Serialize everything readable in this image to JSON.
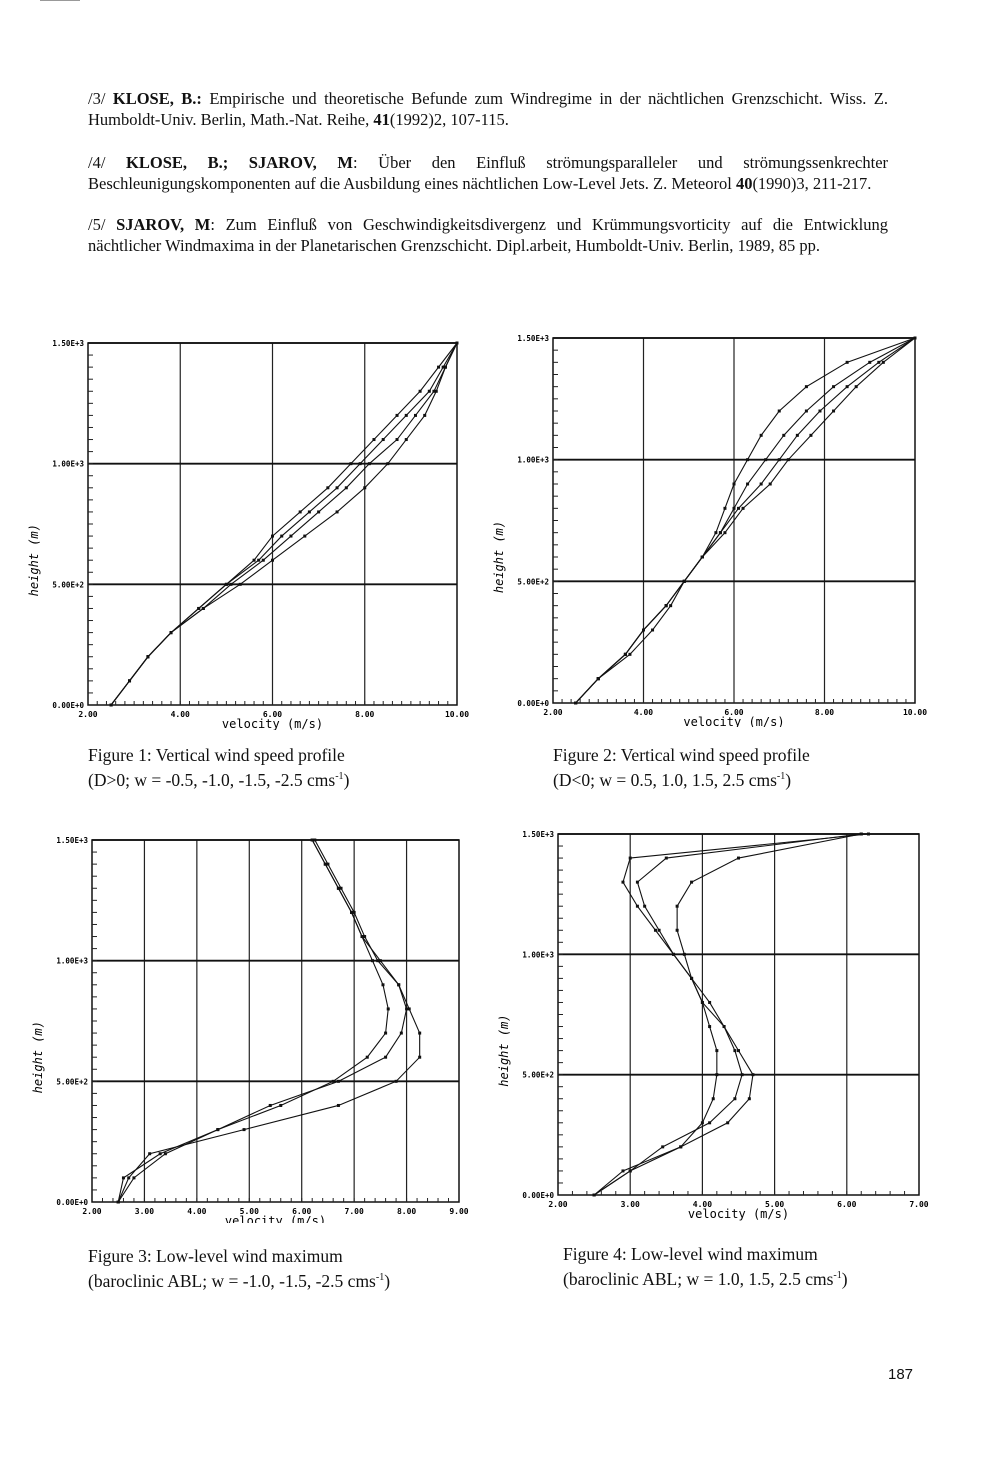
{
  "references": [
    {
      "label": "/3/",
      "author": "KLOSE, B.:",
      "text": "Empirische und theoretische Befunde zum Windregime in der nächtlichen Grenzschicht. Wiss. Z. Humboldt-Univ. Berlin, Math.-Nat. Reihe, ",
      "bold_vol": "41",
      "tail": "(1992)2, 107-115."
    },
    {
      "label": "/4/",
      "author": "KLOSE, B.; SJAROV, M",
      "text": ": Über den Einfluß strömungsparalleler und strömungssenkrechter Beschleunigungskomponenten auf die Ausbildung eines nächtlichen Low-Level Jets. Z. Meteorol ",
      "bold_vol": "40",
      "tail": "(1990)3, 211-217."
    },
    {
      "label": "/5/",
      "author": "SJAROV, M",
      "text": ": Zum Einfluß von Geschwindigkeitsdivergenz und Krümmungsvorticity auf die Entwicklung nächtlicher Windmaxima in der Planetarischen Grenzschicht. Dipl.arbeit, Humboldt-Univ. Berlin, 1989, 85 pp.",
      "bold_vol": "",
      "tail": ""
    }
  ],
  "captions": [
    {
      "line1": "Figure 1: Vertical wind speed profile",
      "pre": "(D>0; w = -0.5, -1.0, -1.5, -2.5 cms",
      "sup": "-1",
      "post": ")"
    },
    {
      "line1": "Figure 2: Vertical wind speed profile",
      "pre": "(D<0; w = 0.5, 1.0, 1.5, 2.5 cms",
      "sup": "-1",
      "post": ")"
    },
    {
      "line1": "Figure 3: Low-level wind maximum",
      "pre": "(baroclinic ABL; w = -1.0, -1.5, -2.5 cms",
      "sup": "-1",
      "post": ")"
    },
    {
      "line1": "Figure 4: Low-level wind maximum",
      "pre": "(baroclinic ABL; w = 1.0, 1.5, 2.5 cms",
      "sup": "-1",
      "post": ")"
    }
  ],
  "page_number": "187",
  "chart_data": [
    {
      "type": "line",
      "xlabel": "velocity (m/s)",
      "ylabel": "height (m)",
      "xlim": [
        2,
        10
      ],
      "ylim": [
        0,
        1500
      ],
      "xticks": [
        "2.00",
        "4.00",
        "6.00",
        "8.00",
        "10.00"
      ],
      "xtick_values": [
        2,
        4,
        6,
        8,
        10
      ],
      "yticks": [
        "0.00E+0",
        "5.00E+2",
        "1.00E+3",
        "1.50E+3"
      ],
      "ytick_values": [
        0,
        500,
        1000,
        1500
      ],
      "heights": [
        0,
        100,
        200,
        300,
        400,
        500,
        600,
        700,
        800,
        900,
        1000,
        1100,
        1200,
        1300,
        1400,
        1500
      ],
      "series": [
        {
          "name": "w=-0.5",
          "values": [
            2.5,
            2.9,
            3.3,
            3.8,
            4.4,
            5.0,
            5.6,
            6.0,
            6.6,
            7.2,
            7.7,
            8.2,
            8.7,
            9.2,
            9.6,
            10.0
          ]
        },
        {
          "name": "w=-1.0",
          "values": [
            2.5,
            2.9,
            3.3,
            3.8,
            4.4,
            5.0,
            5.7,
            6.2,
            6.8,
            7.4,
            7.9,
            8.4,
            8.9,
            9.4,
            9.7,
            10.0
          ]
        },
        {
          "name": "w=-1.5",
          "values": [
            2.5,
            2.9,
            3.3,
            3.8,
            4.5,
            5.1,
            5.8,
            6.4,
            7.0,
            7.6,
            8.1,
            8.7,
            9.1,
            9.5,
            9.75,
            10.0
          ]
        },
        {
          "name": "w=-2.5",
          "values": [
            2.5,
            2.9,
            3.3,
            3.8,
            4.5,
            5.3,
            6.0,
            6.7,
            7.4,
            8.0,
            8.5,
            8.9,
            9.3,
            9.55,
            9.75,
            10.0
          ]
        }
      ]
    },
    {
      "type": "line",
      "xlabel": "velocity (m/s)",
      "ylabel": "height (m)",
      "xlim": [
        2,
        10
      ],
      "ylim": [
        0,
        1500
      ],
      "xticks": [
        "2.00",
        "4.00",
        "6.00",
        "8.00",
        "10.00"
      ],
      "xtick_values": [
        2,
        4,
        6,
        8,
        10
      ],
      "yticks": [
        "0.00E+0",
        "5.00E+2",
        "1.00E+3",
        "1.50E+3"
      ],
      "ytick_values": [
        0,
        500,
        1000,
        1500
      ],
      "heights": [
        0,
        100,
        200,
        300,
        400,
        500,
        600,
        700,
        800,
        900,
        1000,
        1100,
        1200,
        1300,
        1400,
        1500
      ],
      "series": [
        {
          "name": "w=0.5",
          "values": [
            2.5,
            3.0,
            3.6,
            4.0,
            4.5,
            4.9,
            5.3,
            5.6,
            5.8,
            6.0,
            6.3,
            6.6,
            7.0,
            7.6,
            8.5,
            10.0
          ]
        },
        {
          "name": "w=1.0",
          "values": [
            2.5,
            3.0,
            3.6,
            4.0,
            4.5,
            4.9,
            5.3,
            5.7,
            6.0,
            6.3,
            6.7,
            7.1,
            7.6,
            8.2,
            9.0,
            10.0
          ]
        },
        {
          "name": "w=1.5",
          "values": [
            2.5,
            3.0,
            3.6,
            4.0,
            4.5,
            4.9,
            5.3,
            5.7,
            6.1,
            6.6,
            7.0,
            7.4,
            7.9,
            8.5,
            9.2,
            10.0
          ]
        },
        {
          "name": "w=2.5",
          "values": [
            2.5,
            3.0,
            3.7,
            4.2,
            4.6,
            4.9,
            5.3,
            5.8,
            6.2,
            6.8,
            7.2,
            7.7,
            8.2,
            8.7,
            9.3,
            10.0
          ]
        }
      ]
    },
    {
      "type": "line",
      "xlabel": "velocity (m/s)",
      "ylabel": "height (m)",
      "xlim": [
        2,
        9
      ],
      "ylim": [
        0,
        1500
      ],
      "xticks": [
        "2.00",
        "3.00",
        "4.00",
        "5.00",
        "6.00",
        "7.00",
        "8.00",
        "9.00"
      ],
      "xtick_values": [
        2,
        3,
        4,
        5,
        6,
        7,
        8,
        9
      ],
      "yticks": [
        "0.00E+0",
        "5.00E+2",
        "1.00E+3",
        "1.50E+3"
      ],
      "ytick_values": [
        0,
        500,
        1000,
        1500
      ],
      "heights": [
        0,
        100,
        200,
        300,
        400,
        500,
        600,
        700,
        800,
        900,
        1000,
        1100,
        1200,
        1300,
        1400,
        1500
      ],
      "series": [
        {
          "name": "w=-1.0",
          "values": [
            2.5,
            2.8,
            3.4,
            4.4,
            5.6,
            6.6,
            7.25,
            7.6,
            7.65,
            7.55,
            7.35,
            7.15,
            6.95,
            6.7,
            6.45,
            6.2
          ]
        },
        {
          "name": "w=-1.5",
          "values": [
            2.5,
            2.6,
            3.3,
            4.4,
            5.4,
            6.7,
            7.6,
            7.9,
            8.0,
            7.85,
            7.5,
            7.15,
            6.95,
            6.7,
            6.45,
            6.2
          ]
        },
        {
          "name": "w=-2.5",
          "values": [
            2.5,
            2.7,
            3.1,
            4.9,
            6.7,
            7.8,
            8.25,
            8.25,
            8.05,
            7.85,
            7.45,
            7.2,
            7.0,
            6.75,
            6.5,
            6.25
          ]
        }
      ]
    },
    {
      "type": "line",
      "xlabel": "velocity (m/s)",
      "ylabel": "height (m)",
      "xlim": [
        2,
        7
      ],
      "ylim": [
        0,
        1500
      ],
      "xticks": [
        "2.00",
        "3.00",
        "4.00",
        "5.00",
        "6.00",
        "7.00"
      ],
      "xtick_values": [
        2,
        3,
        4,
        5,
        6,
        7
      ],
      "yticks": [
        "0.00E+0",
        "5.00E+2",
        "1.00E+3",
        "1.50E+3"
      ],
      "ytick_values": [
        0,
        500,
        1000,
        1500
      ],
      "heights": [
        0,
        100,
        200,
        300,
        400,
        500,
        600,
        700,
        800,
        900,
        1000,
        1100,
        1200,
        1300,
        1400,
        1500
      ],
      "series": [
        {
          "name": "w=1.0",
          "values": [
            2.5,
            3.0,
            3.7,
            4.0,
            4.15,
            4.2,
            4.2,
            4.1,
            4.0,
            3.85,
            3.6,
            3.35,
            3.1,
            2.9,
            3.0,
            6.3
          ]
        },
        {
          "name": "w=1.5",
          "values": [
            2.5,
            3.0,
            3.45,
            4.1,
            4.45,
            4.55,
            4.45,
            4.3,
            4.0,
            3.85,
            3.6,
            3.4,
            3.2,
            3.1,
            3.5,
            6.2
          ]
        },
        {
          "name": "w=2.5",
          "values": [
            2.5,
            2.9,
            3.7,
            4.35,
            4.65,
            4.7,
            4.5,
            4.3,
            4.1,
            3.85,
            3.75,
            3.65,
            3.65,
            3.85,
            4.5,
            6.2
          ]
        }
      ]
    }
  ]
}
